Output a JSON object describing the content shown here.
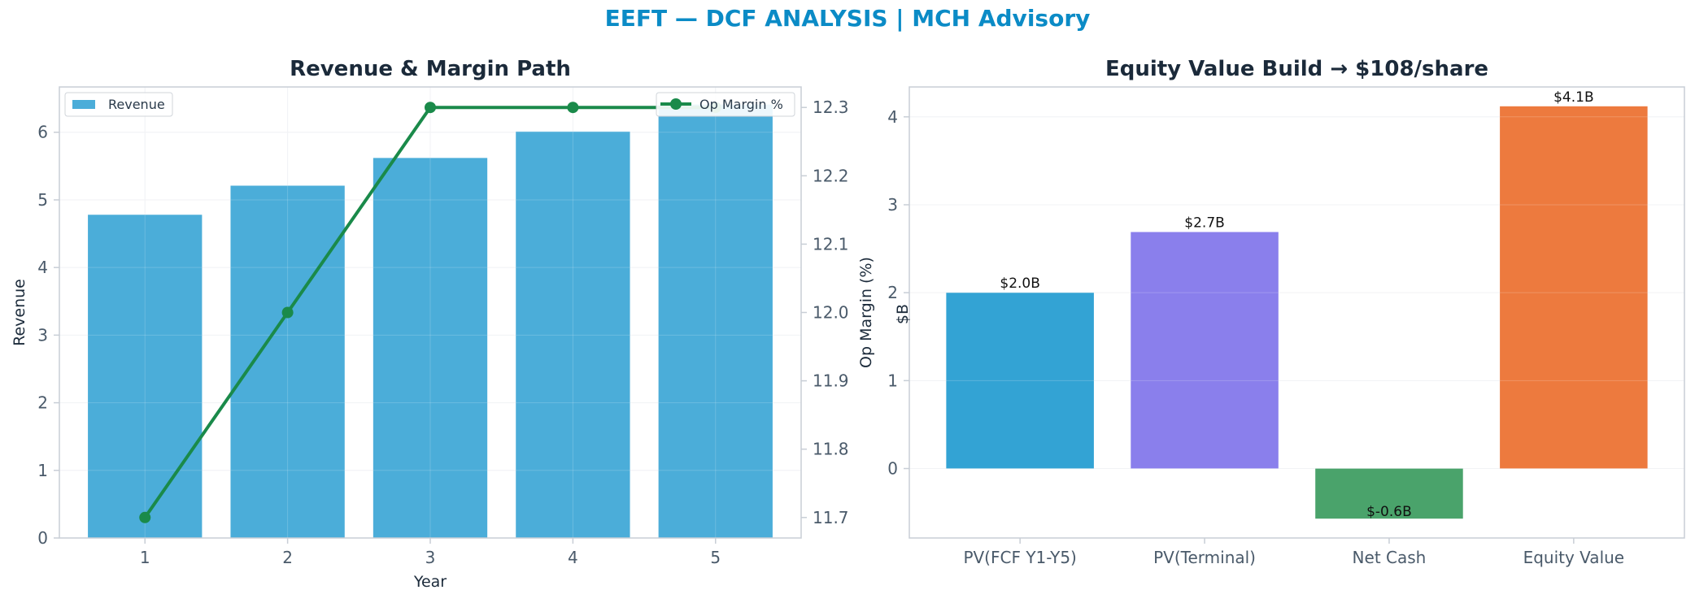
{
  "suptitle": "EEFT — DCF ANALYSIS | MCH Advisory",
  "colors": {
    "suptitle": "#0b8bc6",
    "title": "#1b2a3a",
    "tick": "#4a5a6a",
    "axis_label": "#1b2a3a",
    "spine": "#c8ced6",
    "grid": "#eef0f3",
    "revenue_bar": "#4badd9",
    "margin_line": "#1a8a4a"
  },
  "chart_data": [
    {
      "type": "bar",
      "title": "Revenue & Margin Path",
      "xlabel": "Year",
      "ylabel": "Revenue",
      "y2label": "Op Margin (%)",
      "categories": [
        "1",
        "2",
        "3",
        "4",
        "5"
      ],
      "ylim": [
        0,
        6.67
      ],
      "yticks": [
        "0",
        "1",
        "2",
        "3",
        "4",
        "5",
        "6"
      ],
      "y2lim": [
        11.67,
        12.33
      ],
      "y2ticks": [
        "11.7",
        "11.8",
        "11.9",
        "12.0",
        "12.1",
        "12.2",
        "12.3"
      ],
      "grid": true,
      "series": [
        {
          "name": "Revenue",
          "kind": "bar",
          "axis": "left",
          "color": "#4badd9",
          "values": [
            4.78,
            5.21,
            5.62,
            6.01,
            6.41
          ]
        },
        {
          "name": "Op Margin %",
          "kind": "line",
          "axis": "right",
          "color": "#1a8a4a",
          "values": [
            11.7,
            12.0,
            12.3,
            12.3,
            12.3
          ]
        }
      ],
      "legends": [
        {
          "label": "Revenue",
          "placement": "upper-left"
        },
        {
          "label": "Op Margin %",
          "placement": "upper-right"
        }
      ]
    },
    {
      "type": "bar",
      "title": "Equity Value Build → $108/share",
      "xlabel": "",
      "ylabel": "$B",
      "categories": [
        "PV(FCF Y1-Y5)",
        "PV(Terminal)",
        "Net Cash",
        "Equity Value"
      ],
      "values": [
        2.0,
        2.69,
        -0.57,
        4.12
      ],
      "data_labels": [
        "$2.0B",
        "$2.7B",
        "$-0.6B",
        "$4.1B"
      ],
      "colors": [
        "#33a3d4",
        "#8a7fec",
        "#4aa36b",
        "#ed7a3e"
      ],
      "ylim": [
        -0.79,
        4.34
      ],
      "yticks": [
        "0",
        "1",
        "2",
        "3",
        "4"
      ],
      "grid": true
    }
  ]
}
